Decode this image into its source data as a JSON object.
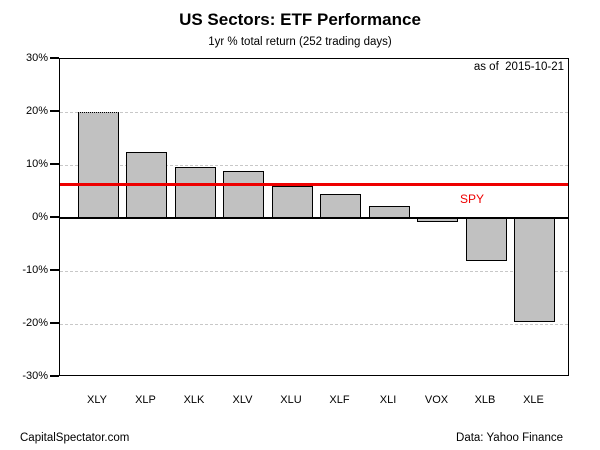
{
  "header": {
    "title": "US Sectors: ETF Performance",
    "subtitle": "1yr % total return (252 trading days)"
  },
  "annotations": {
    "as_of": "as of  2015-10-21"
  },
  "footer": {
    "left": "CapitalSpectator.com",
    "right": "Data: Yahoo Finance"
  },
  "colors": {
    "bar_fill": "#c1c1c1",
    "bar_border": "#000000",
    "grid": "#c8c8c8",
    "reference_line": "#ee0000",
    "text": "#000000"
  },
  "chart_data": {
    "type": "bar",
    "title": "US Sectors: ETF Performance",
    "subtitle": "1yr % total return (252 trading days)",
    "categories": [
      "XLY",
      "XLP",
      "XLK",
      "XLV",
      "XLU",
      "XLF",
      "XLI",
      "VOX",
      "XLB",
      "XLE"
    ],
    "values": [
      20.0,
      12.4,
      9.7,
      8.8,
      6.1,
      4.5,
      2.3,
      -0.7,
      -8.1,
      -19.6
    ],
    "xlabel": "",
    "ylabel": "",
    "ylim": [
      -30,
      30
    ],
    "yticks": [
      30,
      20,
      10,
      0,
      -10,
      -20,
      -30
    ],
    "ytick_labels": [
      "30%",
      "20%",
      "10%",
      "0%",
      "-10%",
      "-20%",
      "-30%"
    ],
    "grid_dashed_at": [
      20,
      10,
      -10,
      -20
    ],
    "grid": "horizontal dashed",
    "legend_position": "none",
    "reference_line": {
      "label": "SPY",
      "value": 6.3,
      "color": "#ee0000"
    },
    "annotation": "as of  2015-10-21"
  }
}
